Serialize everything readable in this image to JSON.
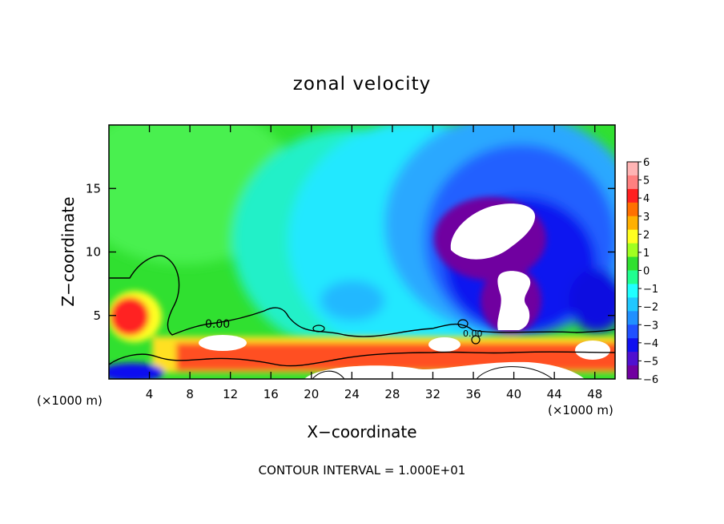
{
  "chart_data": {
    "type": "heatmap",
    "title": "zonal velocity",
    "xlabel": "X−coordinate",
    "ylabel": "Z−coordinate",
    "x_unit_left": "(×1000 m)",
    "x_unit_right": "(×1000 m)",
    "xlim": [
      0,
      50
    ],
    "ylim": [
      0,
      20
    ],
    "x_ticks": [
      4,
      8,
      12,
      16,
      20,
      24,
      28,
      32,
      36,
      40,
      44,
      48
    ],
    "x_tick_labels": [
      "4",
      "8",
      "12",
      "16",
      "20",
      "24",
      "28",
      "32",
      "36",
      "40",
      "44",
      "48"
    ],
    "y_ticks": [
      5,
      10,
      15
    ],
    "y_tick_labels": [
      "5",
      "10",
      "15"
    ],
    "colorbar": {
      "min": -6,
      "max": 6,
      "labels": [
        "6",
        "5",
        "4",
        "3",
        "2",
        "1",
        "0",
        "−1",
        "−2",
        "−3",
        "−4",
        "−5",
        "−6"
      ],
      "colors": [
        "#ffb4b4",
        "#ff8080",
        "#ff2020",
        "#ff7000",
        "#ffb000",
        "#ffff20",
        "#a0ff20",
        "#30e030",
        "#20ff90",
        "#20ffff",
        "#20c8ff",
        "#2090ff",
        "#2050ff",
        "#1010f0",
        "#5010d0",
        "#7000a0"
      ]
    },
    "contour_label": "0.00",
    "contour_label_2": "0.00",
    "footer": "CONTOUR INTERVAL = 1.000E+01"
  }
}
